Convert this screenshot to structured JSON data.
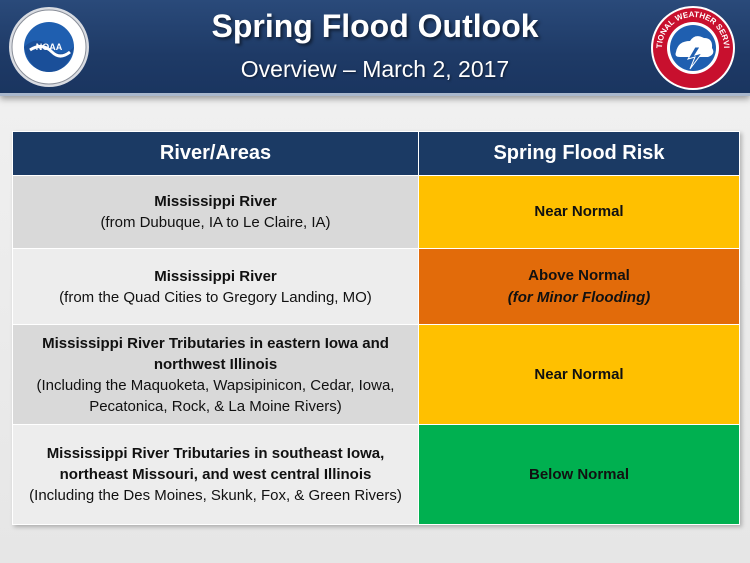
{
  "header": {
    "title": "Spring Flood Outlook",
    "subtitle": "Overview – March 2, 2017",
    "left_logo_text": "NOAA",
    "right_logo_text": "NATIONAL WEATHER SERVICE"
  },
  "table": {
    "columns": [
      "River/Areas",
      "Spring Flood Risk"
    ],
    "rows": [
      {
        "area_title": "Mississippi River",
        "area_detail": "(from Dubuque, IA to Le Claire, IA)",
        "risk": "Near Normal",
        "risk_note": "",
        "risk_color": "#ffc000"
      },
      {
        "area_title": "Mississippi River",
        "area_detail": "(from the Quad Cities to Gregory Landing, MO)",
        "risk": "Above Normal",
        "risk_note": "(for Minor Flooding)",
        "risk_color": "#e26b0a"
      },
      {
        "area_title": "Mississippi River Tributaries in eastern Iowa and northwest Illinois",
        "area_detail": "(Including the Maquoketa, Wapsipinicon, Cedar, Iowa, Pecatonica, Rock, & La Moine Rivers)",
        "risk": "Near Normal",
        "risk_note": "",
        "risk_color": "#ffc000"
      },
      {
        "area_title": "Mississippi River Tributaries in southeast Iowa, northeast Missouri, and west central Illinois",
        "area_detail": "(Including the Des Moines, Skunk, Fox, & Green Rivers)",
        "risk": "Below Normal",
        "risk_note": "",
        "risk_color": "#00b050"
      }
    ]
  },
  "colors": {
    "header_bg": "#1e3a66",
    "table_header_bg": "#1b3a64",
    "near_normal": "#ffc000",
    "above_normal": "#e26b0a",
    "below_normal": "#00b050"
  },
  "icons": [
    "noaa-logo-icon",
    "nws-logo-icon"
  ]
}
